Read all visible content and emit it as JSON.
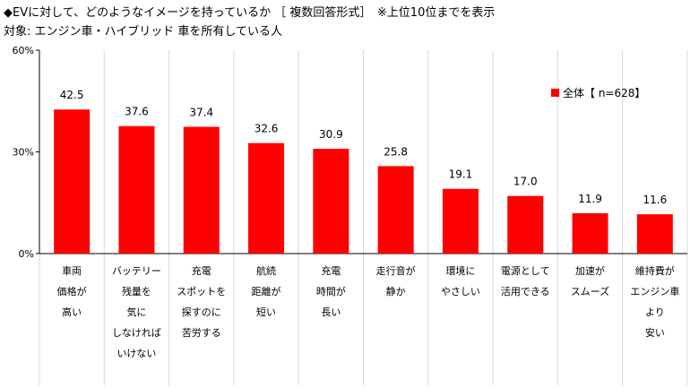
{
  "title": "◆EVに対して、どのようなイメージを持っているか ［ 複数回答形式］　※上位10位までを表示",
  "subtitle": "対象: エンジン車・ハイブリッド 車を所有している人",
  "colors": {
    "bar": "#ff0000",
    "axis": "#000000",
    "grid": "#d9d9d9"
  },
  "chart_data": {
    "type": "bar",
    "title": "◆EVに対して、どのようなイメージを持っているか ［ 複数回答形式］　※上位10位までを表示",
    "subtitle": "対象: エンジン車・ハイブリッド 車を所有している人",
    "ylim": [
      0,
      60
    ],
    "yticks": [
      "0%",
      "30%",
      "60%"
    ],
    "yticks_values": [
      0,
      30,
      60
    ],
    "grid": false,
    "vertical_separators": true,
    "legend": {
      "label": "全体【 n=628】",
      "placement": "top-right"
    },
    "categories": [
      [
        "車両",
        "価格が",
        "高い"
      ],
      [
        "バッテリー",
        "残量を",
        "気に",
        "しなければ",
        "いけない"
      ],
      [
        "充電",
        "スポットを",
        "探すのに",
        "苦労する"
      ],
      [
        "航続",
        "距離が",
        "短い"
      ],
      [
        "充電",
        "時間が",
        "長い"
      ],
      [
        "走行音が",
        "静か"
      ],
      [
        "環境に",
        "やさしい"
      ],
      [
        "電源として",
        "活用できる"
      ],
      [
        "加速が",
        "スムーズ"
      ],
      [
        "維持費が",
        "エンジン車",
        "より",
        "安い"
      ]
    ],
    "values": [
      42.5,
      37.6,
      37.4,
      32.6,
      30.9,
      25.8,
      19.1,
      17.0,
      11.9,
      11.6
    ],
    "value_labels": [
      "42.5",
      "37.6",
      "37.4",
      "32.6",
      "30.9",
      "25.8",
      "19.1",
      "17.0",
      "11.9",
      "11.6"
    ],
    "series": [
      {
        "name": "全体【 n=628】",
        "values": [
          42.5,
          37.6,
          37.4,
          32.6,
          30.9,
          25.8,
          19.1,
          17.0,
          11.9,
          11.6
        ]
      }
    ]
  }
}
